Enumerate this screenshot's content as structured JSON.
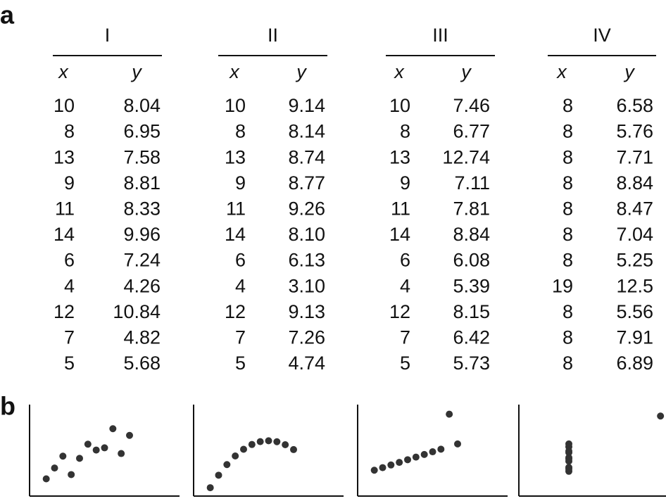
{
  "panel_a": {
    "label": "a",
    "sets": [
      {
        "name": "I",
        "columns": [
          "x",
          "y"
        ],
        "rows": [
          [
            "10",
            "8.04"
          ],
          [
            "8",
            "6.95"
          ],
          [
            "13",
            "7.58"
          ],
          [
            "9",
            "8.81"
          ],
          [
            "11",
            "8.33"
          ],
          [
            "14",
            "9.96"
          ],
          [
            "6",
            "7.24"
          ],
          [
            "4",
            "4.26"
          ],
          [
            "12",
            "10.84"
          ],
          [
            "7",
            "4.82"
          ],
          [
            "5",
            "5.68"
          ]
        ]
      },
      {
        "name": "II",
        "columns": [
          "x",
          "y"
        ],
        "rows": [
          [
            "10",
            "9.14"
          ],
          [
            "8",
            "8.14"
          ],
          [
            "13",
            "8.74"
          ],
          [
            "9",
            "8.77"
          ],
          [
            "11",
            "9.26"
          ],
          [
            "14",
            "8.10"
          ],
          [
            "6",
            "6.13"
          ],
          [
            "4",
            "3.10"
          ],
          [
            "12",
            "9.13"
          ],
          [
            "7",
            "7.26"
          ],
          [
            "5",
            "4.74"
          ]
        ]
      },
      {
        "name": "III",
        "columns": [
          "x",
          "y"
        ],
        "rows": [
          [
            "10",
            "7.46"
          ],
          [
            "8",
            "6.77"
          ],
          [
            "13",
            "12.74"
          ],
          [
            "9",
            "7.11"
          ],
          [
            "11",
            "7.81"
          ],
          [
            "14",
            "8.84"
          ],
          [
            "6",
            "6.08"
          ],
          [
            "4",
            "5.39"
          ],
          [
            "12",
            "8.15"
          ],
          [
            "7",
            "6.42"
          ],
          [
            "5",
            "5.73"
          ]
        ]
      },
      {
        "name": "IV",
        "columns": [
          "x",
          "y"
        ],
        "rows": [
          [
            "8",
            "6.58"
          ],
          [
            "8",
            "5.76"
          ],
          [
            "8",
            "7.71"
          ],
          [
            "8",
            "8.84"
          ],
          [
            "8",
            "8.47"
          ],
          [
            "8",
            "7.04"
          ],
          [
            "8",
            "5.25"
          ],
          [
            "19",
            "12.5"
          ],
          [
            "8",
            "5.56"
          ],
          [
            "8",
            "7.91"
          ],
          [
            "8",
            "6.89"
          ]
        ]
      }
    ]
  },
  "panel_b": {
    "label": "b",
    "xlim": [
      2,
      20
    ],
    "ylim": [
      2,
      14
    ]
  }
}
